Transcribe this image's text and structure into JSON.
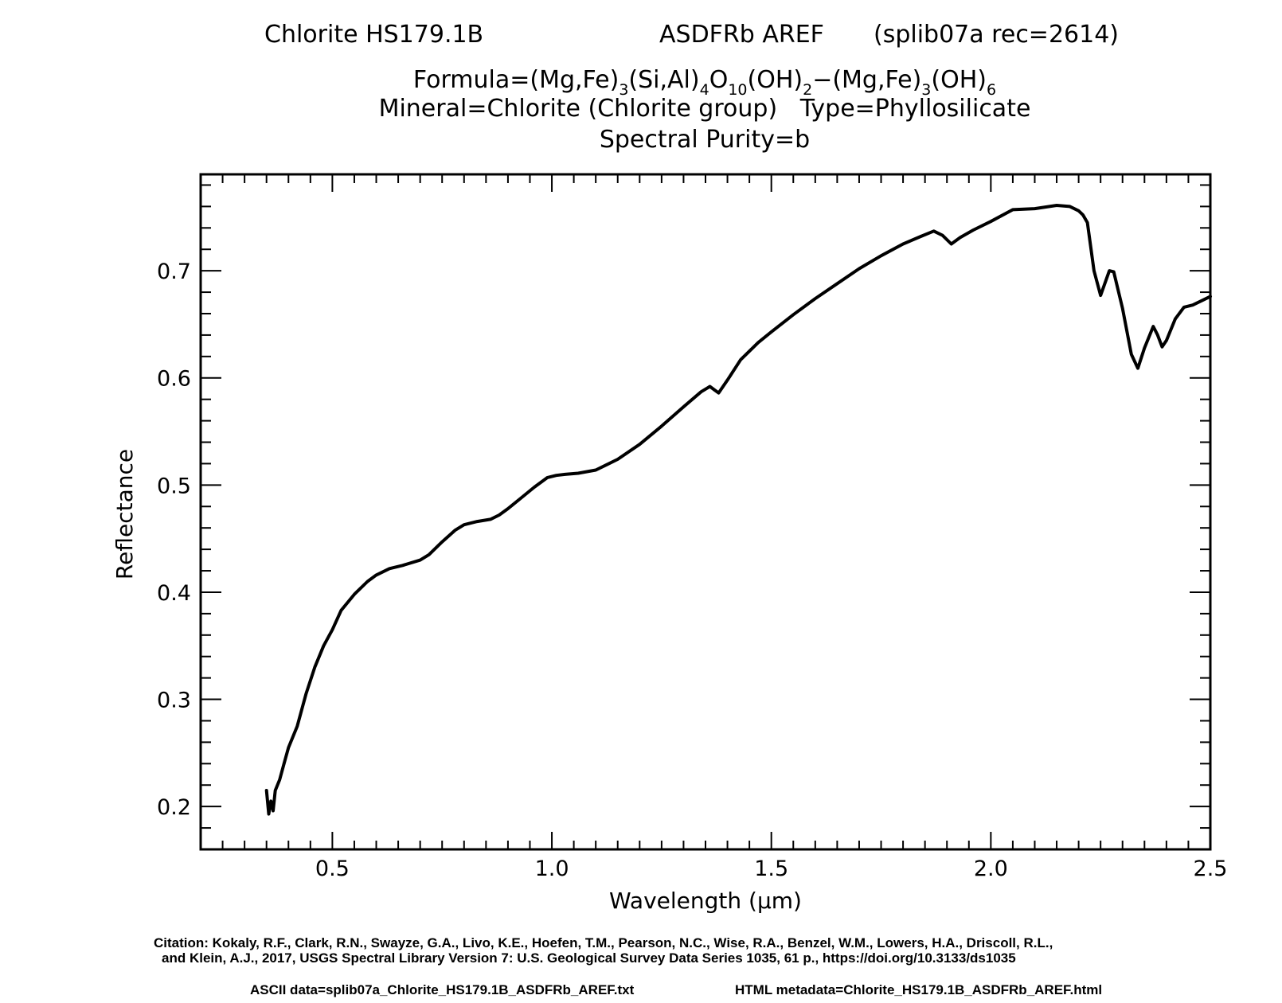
{
  "header": {
    "sample": "Chlorite HS179.1B",
    "measurement": "ASDFRb AREF",
    "record": "(splib07a rec=2614)",
    "formula_prefix": "Formula=(Mg,Fe)",
    "formula_sub1": "3",
    "formula_mid1": "(Si,Al)",
    "formula_sub2": "4",
    "formula_mid2": "O",
    "formula_sub3": "10",
    "formula_mid3": "(OH)",
    "formula_sub4": "2",
    "formula_mid4": "−(Mg,Fe)",
    "formula_sub5": "3",
    "formula_mid5": "(OH)",
    "formula_sub6": "6",
    "mineral_line": "Mineral=Chlorite (Chlorite group)   Type=Phyllosilicate",
    "purity_line": "Spectral Purity=b"
  },
  "footer": {
    "citation_line1": "Citation: Kokaly, R.F., Clark, R.N., Swayze, G.A., Livo, K.E., Hoefen, T.M., Pearson, N.C., Wise, R.A., Benzel, W.M., Lowers, H.A., Driscoll, R.L.,",
    "citation_line2": "and Klein, A.J., 2017, USGS Spectral Library Version 7: U.S. Geological Survey Data Series 1035, 61 p., https://doi.org/10.3133/ds1035",
    "ascii_data": "ASCII data=splib07a_Chlorite_HS179.1B_ASDFRb_AREF.txt",
    "html_metadata": "HTML metadata=Chlorite_HS179.1B_ASDFRb_AREF.html"
  },
  "chart_data": {
    "type": "line",
    "xlabel": "Wavelength (μm)",
    "ylabel": "Reflectance",
    "xlim": [
      0.2,
      2.5
    ],
    "ylim": [
      0.16,
      0.79
    ],
    "xticks": [
      0.5,
      1.0,
      1.5,
      2.0,
      2.5
    ],
    "xtick_labels": [
      "0.5",
      "1.0",
      "1.5",
      "2.0",
      "2.5"
    ],
    "yticks": [
      0.2,
      0.3,
      0.4,
      0.5,
      0.6,
      0.7
    ],
    "ytick_labels": [
      "0.2",
      "0.3",
      "0.4",
      "0.5",
      "0.6",
      "0.7"
    ],
    "grid": false,
    "line_color": "#000000",
    "series": [
      {
        "x": [
          0.35,
          0.355,
          0.36,
          0.365,
          0.37,
          0.38,
          0.39,
          0.4,
          0.42,
          0.44,
          0.46,
          0.48,
          0.5,
          0.52,
          0.55,
          0.58,
          0.6,
          0.63,
          0.66,
          0.7,
          0.72,
          0.75,
          0.78,
          0.8,
          0.83,
          0.86,
          0.88,
          0.9,
          0.93,
          0.96,
          0.99,
          1.01,
          1.03,
          1.06,
          1.1,
          1.15,
          1.2,
          1.25,
          1.3,
          1.34,
          1.36,
          1.37,
          1.38,
          1.4,
          1.43,
          1.47,
          1.5,
          1.55,
          1.6,
          1.65,
          1.7,
          1.75,
          1.8,
          1.84,
          1.87,
          1.89,
          1.91,
          1.93,
          1.96,
          2.0,
          2.05,
          2.1,
          2.15,
          2.18,
          2.2,
          2.21,
          2.22,
          2.235,
          2.25,
          2.27,
          2.28,
          2.3,
          2.32,
          2.335,
          2.35,
          2.37,
          2.38,
          2.39,
          2.4,
          2.42,
          2.44,
          2.46,
          2.48,
          2.5
        ],
        "y": [
          0.215,
          0.193,
          0.205,
          0.196,
          0.215,
          0.225,
          0.24,
          0.255,
          0.275,
          0.305,
          0.33,
          0.35,
          0.365,
          0.383,
          0.398,
          0.41,
          0.416,
          0.422,
          0.425,
          0.43,
          0.435,
          0.447,
          0.458,
          0.463,
          0.466,
          0.468,
          0.472,
          0.478,
          0.488,
          0.498,
          0.507,
          0.509,
          0.51,
          0.511,
          0.514,
          0.524,
          0.538,
          0.555,
          0.573,
          0.587,
          0.592,
          0.589,
          0.586,
          0.598,
          0.617,
          0.633,
          0.643,
          0.659,
          0.674,
          0.688,
          0.702,
          0.714,
          0.725,
          0.732,
          0.737,
          0.733,
          0.725,
          0.731,
          0.738,
          0.746,
          0.757,
          0.758,
          0.761,
          0.76,
          0.756,
          0.752,
          0.745,
          0.7,
          0.677,
          0.7,
          0.699,
          0.665,
          0.622,
          0.609,
          0.628,
          0.648,
          0.64,
          0.629,
          0.635,
          0.655,
          0.666,
          0.668,
          0.672,
          0.676
        ]
      }
    ]
  }
}
